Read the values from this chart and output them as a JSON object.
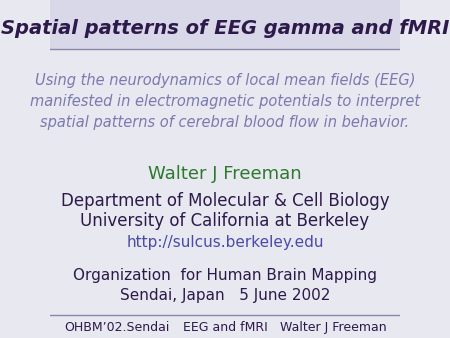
{
  "title": "Spatial patterns of EEG gamma and fMRI",
  "title_color": "#2d1a4a",
  "title_fontsize": 14,
  "subtitle": "Using the neurodynamics of local mean fields (EEG)\nmanifested in electromagnetic potentials to interpret\nspatial patterns of cerebral blood flow in behavior.",
  "subtitle_color": "#7a7ab0",
  "subtitle_fontsize": 10.5,
  "author": "Walter J Freeman",
  "author_color": "#2d7a2d",
  "author_fontsize": 13,
  "dept_line1": "Department of Molecular & Cell Biology",
  "dept_line2": "University of California at Berkeley",
  "dept_color": "#2d1a4a",
  "dept_fontsize": 12,
  "url": "http://sulcus.berkeley.edu",
  "url_color": "#4a4aaa",
  "url_fontsize": 11,
  "org_line1": "Organization  for Human Brain Mapping",
  "org_line2": "Sendai, Japan   5 June 2002",
  "org_color": "#2d1a4a",
  "org_fontsize": 11,
  "footer_left": "OHBM’02.Sendai",
  "footer_center": "EEG and fMRI",
  "footer_right": "Walter J Freeman",
  "footer_color": "#2d1a4a",
  "footer_fontsize": 9,
  "bg_color": "#e8e8f0",
  "header_bg": "#d8d8e8",
  "footer_line_color": "#8888aa"
}
